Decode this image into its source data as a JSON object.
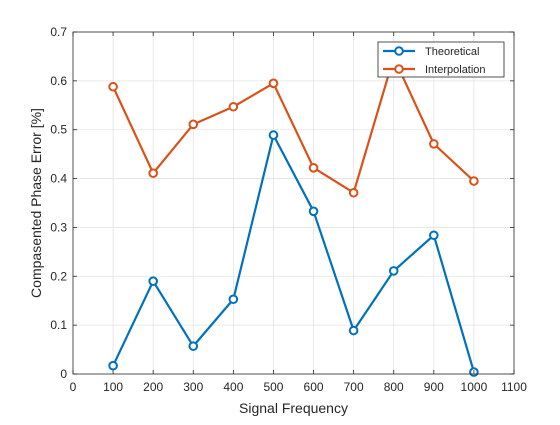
{
  "chart_data": {
    "type": "line",
    "title": "",
    "xlabel": "Signal Frequency",
    "ylabel": "Compasented Phase Error [%]",
    "xlim": [
      0,
      1100
    ],
    "ylim": [
      0,
      0.7
    ],
    "xticks": [
      0,
      100,
      200,
      300,
      400,
      500,
      600,
      700,
      800,
      900,
      1000,
      1100
    ],
    "yticks": [
      0,
      0.1,
      0.2,
      0.3,
      0.4,
      0.5,
      0.6,
      0.7
    ],
    "x": [
      100,
      200,
      300,
      400,
      500,
      600,
      700,
      800,
      900,
      1000
    ],
    "grid": true,
    "legend_position": "top-right",
    "series": [
      {
        "name": "Theoretical",
        "color": "#0072BD",
        "marker": "circle",
        "values": [
          0.017,
          0.19,
          0.057,
          0.153,
          0.489,
          0.333,
          0.089,
          0.211,
          0.284,
          0.004
        ]
      },
      {
        "name": "Interpolation",
        "color": "#D95319",
        "marker": "circle",
        "values": [
          0.588,
          0.411,
          0.511,
          0.547,
          0.595,
          0.422,
          0.371,
          0.648,
          0.471,
          0.395
        ]
      }
    ]
  }
}
